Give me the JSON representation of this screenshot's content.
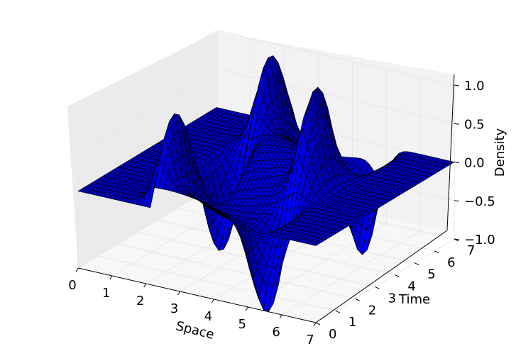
{
  "chart_data": {
    "type": "surface3d",
    "title": "",
    "xlabel": "Space",
    "ylabel": "Time",
    "zlabel": "Density",
    "x_ticks": [
      "0",
      "1",
      "2",
      "3",
      "4",
      "5",
      "6",
      "7"
    ],
    "y_ticks": [
      "0",
      "1",
      "2",
      "3",
      "4",
      "5",
      "6",
      "7"
    ],
    "z_ticks": [
      "−1.0",
      "−0.5",
      "0.0",
      "0.5",
      "1.0"
    ],
    "xlim": [
      0,
      7
    ],
    "ylim": [
      0,
      7
    ],
    "zlim": [
      -1.0,
      1.0
    ],
    "grid": true,
    "legend": "none",
    "surface_color": "#0000ff",
    "edge_color": "#000000",
    "pane_color": "#f2f2f2",
    "grid_color": "#e6e6e6",
    "description_of_surface": {
      "baseline_density": 0.0,
      "left_peak_x": 2.2,
      "right_peak_x": 4.9,
      "peak_amplitude": 1.0,
      "trough_amplitude": -1.0
    }
  }
}
